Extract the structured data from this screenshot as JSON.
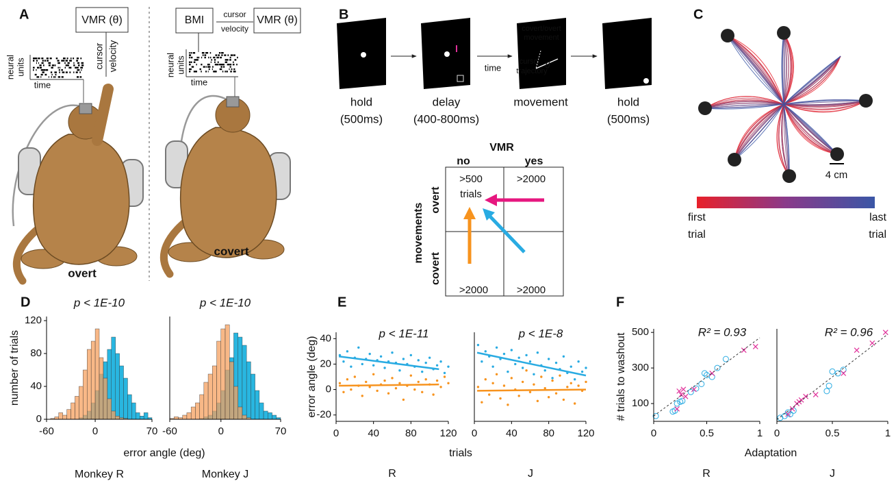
{
  "panel_labels": [
    "A",
    "B",
    "C",
    "D",
    "E",
    "F"
  ],
  "panel_a": {
    "overt": {
      "box": "VMR (θ)",
      "raster_y": [
        "neural",
        "units"
      ],
      "raster_x": "time",
      "kin": [
        "cursor",
        "velocity"
      ],
      "label": "overt"
    },
    "covert": {
      "bmi": "BMI",
      "link": [
        "cursor",
        "velocity"
      ],
      "box": "VMR (θ)",
      "raster_y": [
        "neural",
        "units"
      ],
      "raster_x": "time",
      "label": "covert"
    }
  },
  "panel_b": {
    "epochs": [
      {
        "name": "hold",
        "duration": "(500ms)"
      },
      {
        "name": "delay",
        "duration": "(400-800ms)"
      },
      {
        "name": "movement"
      },
      {
        "name": "hold",
        "duration": "(500ms)"
      }
    ],
    "time": "time",
    "screen_text": [
      "covert/overt",
      "movement",
      "θ",
      "cursor",
      "trajectory"
    ],
    "table": {
      "col_title": "VMR",
      "cols": [
        "no",
        "yes"
      ],
      "row_title": "movements",
      "rows": [
        "overt",
        "covert"
      ],
      "cells": [
        [
          [
            ">500",
            "trials"
          ],
          [
            ">2000"
          ]
        ],
        [
          [
            ">2000"
          ],
          [
            ">2000"
          ]
        ]
      ]
    }
  },
  "panel_c": {
    "scale": "4 cm",
    "colorbar": {
      "start": [
        "first",
        "trial"
      ],
      "end": [
        "last",
        "trial"
      ]
    }
  },
  "chart_data": [
    {
      "type": "histogram",
      "title": "p < 1E-10",
      "caption": "Monkey R",
      "xlabel": "error angle (deg)",
      "ylabel": "number of trials",
      "xlim": [
        -60,
        70
      ],
      "ylim": [
        0,
        125
      ],
      "xticks": [
        -60,
        0,
        70
      ],
      "yticks": [
        0,
        40,
        80,
        120
      ],
      "bins": [
        -60,
        -55,
        -50,
        -45,
        -40,
        -35,
        -30,
        -25,
        -20,
        -15,
        -10,
        -5,
        0,
        5,
        10,
        15,
        20,
        25,
        30,
        35,
        40,
        45,
        50,
        55,
        60,
        65,
        70
      ],
      "series": [
        {
          "color": "#29b6e0",
          "values": [
            0,
            0,
            0,
            0,
            0,
            0,
            0,
            0,
            2,
            5,
            10,
            20,
            35,
            55,
            70,
            85,
            100,
            80,
            65,
            50,
            30,
            20,
            8,
            4,
            8,
            2
          ]
        },
        {
          "color": "rgba(245,160,95,0.75)",
          "values": [
            0,
            1,
            3,
            8,
            5,
            12,
            20,
            28,
            40,
            60,
            85,
            95,
            110,
            75,
            50,
            25,
            10,
            4,
            2,
            1,
            0,
            0,
            0,
            0,
            0,
            0
          ]
        }
      ]
    },
    {
      "type": "histogram",
      "title": "p < 1E-10",
      "caption": "Monkey J",
      "xlim": [
        -60,
        70
      ],
      "ylim": [
        0,
        125
      ],
      "xticks": [
        -60,
        0,
        70
      ],
      "bins": [
        -60,
        -55,
        -50,
        -45,
        -40,
        -35,
        -30,
        -25,
        -20,
        -15,
        -10,
        -5,
        0,
        5,
        10,
        15,
        20,
        25,
        30,
        35,
        40,
        45,
        50,
        55,
        60,
        65,
        70
      ],
      "series": [
        {
          "color": "#29b6e0",
          "values": [
            0,
            0,
            0,
            0,
            0,
            0,
            0,
            1,
            3,
            5,
            10,
            20,
            35,
            60,
            75,
            105,
            100,
            90,
            70,
            55,
            35,
            20,
            10,
            8,
            5,
            2
          ]
        },
        {
          "color": "rgba(245,160,95,0.75)",
          "values": [
            1,
            3,
            2,
            5,
            8,
            15,
            20,
            30,
            45,
            55,
            65,
            95,
            110,
            115,
            70,
            40,
            15,
            5,
            2,
            0,
            0,
            0,
            0,
            0,
            0,
            0
          ]
        }
      ]
    },
    {
      "type": "scatter",
      "title": "p < 1E-11",
      "caption": "R",
      "xlabel": "trials",
      "ylabel": "error angle (deg)",
      "xlim": [
        0,
        120
      ],
      "ylim": [
        -25,
        45
      ],
      "xticks": [
        0,
        40,
        80,
        120
      ],
      "yticks": [
        -20,
        0,
        20,
        40
      ],
      "x": [
        4,
        8,
        12,
        16,
        20,
        24,
        28,
        32,
        36,
        40,
        44,
        48,
        52,
        56,
        60,
        64,
        68,
        72,
        76,
        80,
        84,
        88,
        92,
        96,
        100,
        104,
        108,
        112,
        116,
        120
      ],
      "series": [
        {
          "color": "#29abe2",
          "marker": "dot",
          "values": [
            27,
            22,
            30,
            18,
            25,
            33,
            20,
            24,
            28,
            19,
            23,
            26,
            17,
            22,
            29,
            21,
            15,
            24,
            20,
            27,
            18,
            23,
            14,
            21,
            25,
            16,
            19,
            22,
            13,
            18
          ]
        },
        {
          "color": "#f7931e",
          "marker": "dot",
          "values": [
            5,
            -2,
            8,
            0,
            10,
            3,
            -5,
            6,
            2,
            12,
            -1,
            4,
            7,
            -3,
            9,
            1,
            5,
            -8,
            3,
            11,
            0,
            6,
            -2,
            8,
            4,
            -4,
            7,
            2,
            10,
            5
          ]
        }
      ],
      "fits": [
        {
          "color": "#29abe2",
          "x": [
            3,
            110
          ],
          "values": [
            26,
            16
          ]
        },
        {
          "color": "#f7931e",
          "x": [
            3,
            110
          ],
          "values": [
            3,
            4
          ]
        }
      ]
    },
    {
      "type": "scatter",
      "title": "p < 1E-8",
      "caption": "J",
      "xlim": [
        0,
        120
      ],
      "ylim": [
        -25,
        45
      ],
      "xticks": [
        0,
        40,
        80,
        120
      ],
      "x": [
        4,
        8,
        12,
        16,
        20,
        24,
        28,
        32,
        36,
        40,
        44,
        48,
        52,
        56,
        60,
        64,
        68,
        72,
        76,
        80,
        84,
        88,
        92,
        96,
        100,
        104,
        108,
        112,
        116,
        120
      ],
      "series": [
        {
          "color": "#29abe2",
          "marker": "dot",
          "values": [
            35,
            22,
            30,
            26,
            18,
            33,
            24,
            28,
            14,
            31,
            20,
            25,
            17,
            27,
            22,
            12,
            29,
            19,
            15,
            24,
            9,
            21,
            16,
            26,
            13,
            18,
            8,
            22,
            14,
            17
          ]
        },
        {
          "color": "#f7931e",
          "marker": "dot",
          "values": [
            2,
            -10,
            8,
            -4,
            5,
            12,
            -7,
            3,
            -12,
            9,
            0,
            -5,
            6,
            15,
            -2,
            4,
            -9,
            10,
            1,
            -6,
            7,
            -3,
            11,
            -8,
            2,
            5,
            -11,
            3,
            -1,
            6
          ]
        }
      ],
      "fits": [
        {
          "color": "#29abe2",
          "x": [
            3,
            120
          ],
          "values": [
            29,
            11
          ]
        },
        {
          "color": "#f7931e",
          "x": [
            3,
            120
          ],
          "values": [
            -1,
            0
          ]
        }
      ]
    },
    {
      "type": "scatter",
      "title": "R² = 0.93",
      "caption": "R",
      "xlabel": "Adaptation",
      "ylabel": "# trials to washout",
      "xlim": [
        0,
        1
      ],
      "ylim": [
        0,
        520
      ],
      "xticks": [
        0,
        0.5,
        1
      ],
      "yticks": [
        100,
        300,
        500
      ],
      "series": [
        {
          "color": "#29abe2",
          "marker": "circle",
          "x": [
            0.02,
            0.18,
            0.2,
            0.22,
            0.25,
            0.27,
            0.35,
            0.4,
            0.45,
            0.48,
            0.5,
            0.55,
            0.6,
            0.68
          ],
          "values": [
            30,
            55,
            60,
            100,
            110,
            115,
            165,
            185,
            210,
            270,
            260,
            250,
            300,
            350
          ]
        },
        {
          "color": "#e0309a",
          "marker": "x",
          "x": [
            0.22,
            0.24,
            0.26,
            0.28,
            0.3,
            0.38,
            0.55,
            0.85,
            0.96
          ],
          "values": [
            70,
            170,
            150,
            180,
            140,
            180,
            270,
            400,
            420
          ]
        }
      ],
      "fits": [
        {
          "color": "#333",
          "dash": true,
          "x": [
            0,
            1
          ],
          "values": [
            30,
            470
          ]
        }
      ]
    },
    {
      "type": "scatter",
      "title": "R² = 0.96",
      "caption": "J",
      "xlim": [
        0,
        1
      ],
      "ylim": [
        0,
        520
      ],
      "xticks": [
        0,
        0.5,
        1
      ],
      "series": [
        {
          "color": "#29abe2",
          "marker": "circle",
          "x": [
            0.03,
            0.07,
            0.1,
            0.12,
            0.15,
            0.45,
            0.47,
            0.5,
            0.55,
            0.6
          ],
          "values": [
            20,
            30,
            50,
            40,
            60,
            170,
            200,
            280,
            270,
            290
          ]
        },
        {
          "color": "#e0309a",
          "marker": "x",
          "x": [
            0.1,
            0.14,
            0.18,
            0.2,
            0.22,
            0.26,
            0.35,
            0.6,
            0.72,
            0.86,
            0.98
          ],
          "values": [
            40,
            70,
            100,
            110,
            120,
            140,
            150,
            270,
            400,
            440,
            500
          ]
        }
      ],
      "fits": [
        {
          "color": "#333",
          "dash": true,
          "x": [
            0,
            1
          ],
          "values": [
            10,
            490
          ]
        }
      ]
    }
  ]
}
